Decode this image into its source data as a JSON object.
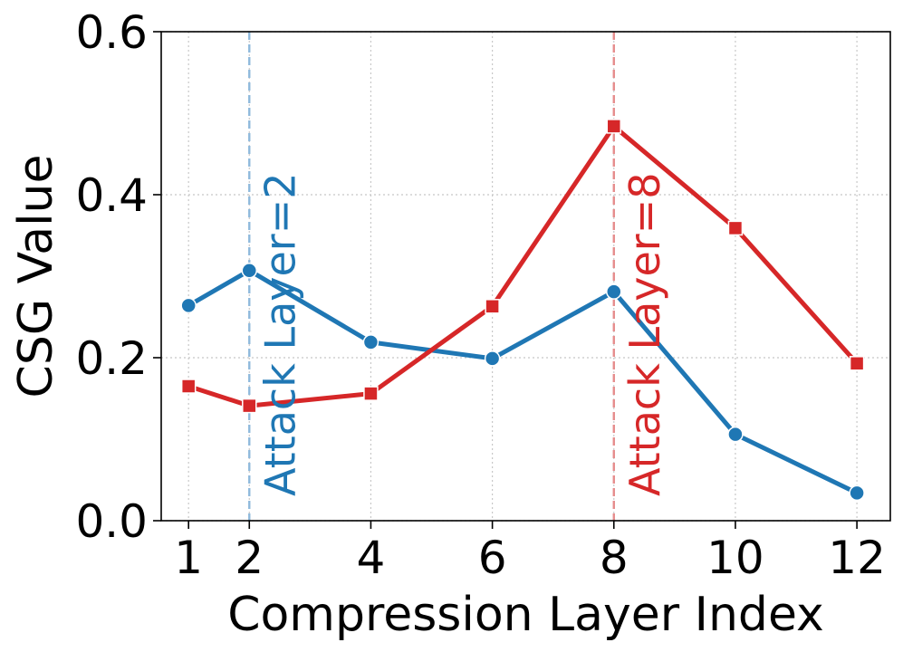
{
  "chart_data": {
    "type": "line",
    "xlabel": "Compression Layer Index",
    "ylabel": "CSG Value",
    "xlim": [
      0.55,
      12.55
    ],
    "ylim": [
      0.0,
      0.6
    ],
    "x_ticks": [
      1,
      2,
      4,
      6,
      8,
      10,
      12
    ],
    "y_ticks": [
      0.0,
      0.2,
      0.4,
      0.6
    ],
    "y_tick_labels": [
      "0.0",
      "0.2",
      "0.4",
      "0.6"
    ],
    "grid": true,
    "legend": "none",
    "x": [
      1,
      2,
      4,
      6,
      8,
      10,
      12
    ],
    "series": [
      {
        "values": [
          0.264,
          0.307,
          0.219,
          0.199,
          0.281,
          0.106,
          0.034
        ],
        "color": "#1f77b4",
        "marker": "circle"
      },
      {
        "values": [
          0.165,
          0.141,
          0.156,
          0.263,
          0.484,
          0.359,
          0.193
        ],
        "color": "#d62728",
        "marker": "square"
      }
    ],
    "annotations": [
      {
        "x": 2,
        "text": "Attack Layer=2",
        "color": "#1f77b4",
        "line_color": "#8fb9dc"
      },
      {
        "x": 8,
        "text": "Attack Layer=8",
        "color": "#d62728",
        "line_color": "#e68c8c"
      }
    ]
  }
}
